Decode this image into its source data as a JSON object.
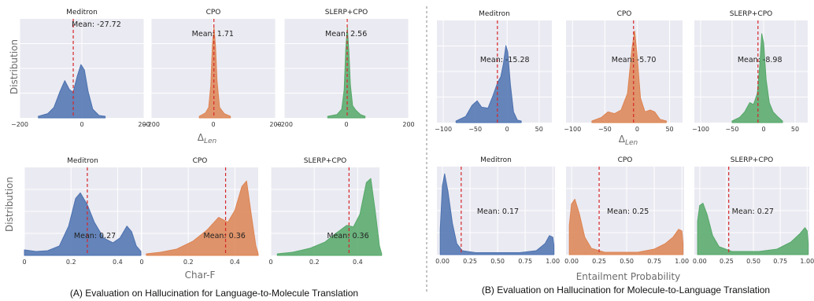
{
  "colors": {
    "Meditron": "#4c72b0",
    "CPO": "#dd8452",
    "SLERP+CPO": "#55a868",
    "panel_bg": "#eaeaf2",
    "mean_line": "#d62728"
  },
  "captions": {
    "left": "(A) Evaluation on Hallucination for Language-to-Molecule Translation",
    "right": "(B) Evaluation on Hallucination for Molecule-to-Language Translation"
  },
  "axis_labels": {
    "row_ylabel": "Distribution",
    "tl_xlabel": "Δ",
    "tl_xlabel_sub": "Len",
    "bl_xlabel": "Char-F",
    "tr_xlabel": "Δ",
    "tr_xlabel_sub": "Len",
    "br_xlabel": "Entailment Probability"
  },
  "chart_data": [
    {
      "id": "tl",
      "type": "area",
      "xlim": [
        -200,
        200
      ],
      "xticks": [
        -200,
        0,
        200
      ],
      "xtick_labels": [
        "−200",
        "0",
        "200"
      ],
      "grid": true,
      "panels": [
        {
          "title": "Meditron",
          "mean": -27.72,
          "mean_label": "Mean: -27.72",
          "color": "Meditron",
          "curve": [
            [
              -140,
              0
            ],
            [
              -110,
              0.03
            ],
            [
              -90,
              0.1
            ],
            [
              -70,
              0.28
            ],
            [
              -55,
              0.4
            ],
            [
              -40,
              0.3
            ],
            [
              -28,
              0.27
            ],
            [
              -15,
              0.45
            ],
            [
              -3,
              0.58
            ],
            [
              8,
              0.52
            ],
            [
              20,
              0.28
            ],
            [
              35,
              0.08
            ],
            [
              55,
              0.01
            ],
            [
              75,
              0
            ]
          ]
        },
        {
          "title": "CPO",
          "mean": 1.71,
          "mean_label": "Mean: 1.71",
          "color": "CPO",
          "curve": [
            [
              -45,
              0
            ],
            [
              -25,
              0.04
            ],
            [
              -15,
              0.1
            ],
            [
              -8,
              0.35
            ],
            [
              -3,
              0.8
            ],
            [
              2,
              1.0
            ],
            [
              7,
              0.78
            ],
            [
              12,
              0.4
            ],
            [
              20,
              0.1
            ],
            [
              35,
              0.03
            ],
            [
              55,
              0
            ]
          ]
        },
        {
          "title": "SLERP+CPO",
          "mean": 2.56,
          "mean_label": "Mean: 2.56",
          "color": "SLERP+CPO",
          "curve": [
            [
              -60,
              0
            ],
            [
              -30,
              0.02
            ],
            [
              -15,
              0.08
            ],
            [
              -7,
              0.3
            ],
            [
              -2,
              0.75
            ],
            [
              3,
              1.0
            ],
            [
              8,
              0.72
            ],
            [
              13,
              0.35
            ],
            [
              20,
              0.12
            ],
            [
              30,
              0.07
            ],
            [
              45,
              0.02
            ],
            [
              60,
              0
            ]
          ]
        }
      ]
    },
    {
      "id": "bl",
      "type": "area",
      "xlim": [
        0,
        0.5
      ],
      "xticks": [
        0,
        0.2,
        0.4
      ],
      "xtick_labels": [
        "0",
        "0.2",
        "0.4"
      ],
      "grid": true,
      "panels": [
        {
          "title": "Meditron",
          "mean": 0.27,
          "mean_label": "Mean: 0.27",
          "color": "Meditron",
          "curve": [
            [
              0,
              0.05
            ],
            [
              0.05,
              0.03
            ],
            [
              0.1,
              0.04
            ],
            [
              0.15,
              0.1
            ],
            [
              0.19,
              0.35
            ],
            [
              0.22,
              0.7
            ],
            [
              0.24,
              0.77
            ],
            [
              0.27,
              0.62
            ],
            [
              0.3,
              0.4
            ],
            [
              0.34,
              0.2
            ],
            [
              0.38,
              0.14
            ],
            [
              0.41,
              0.2
            ],
            [
              0.44,
              0.35
            ],
            [
              0.46,
              0.28
            ],
            [
              0.48,
              0.1
            ],
            [
              0.5,
              0.03
            ]
          ]
        },
        {
          "title": "CPO",
          "mean": 0.36,
          "mean_label": "Mean: 0.36",
          "color": "CPO",
          "curve": [
            [
              0.02,
              0
            ],
            [
              0.08,
              0.02
            ],
            [
              0.15,
              0.06
            ],
            [
              0.22,
              0.16
            ],
            [
              0.28,
              0.3
            ],
            [
              0.33,
              0.46
            ],
            [
              0.37,
              0.4
            ],
            [
              0.4,
              0.55
            ],
            [
              0.43,
              0.85
            ],
            [
              0.45,
              0.92
            ],
            [
              0.47,
              0.5
            ],
            [
              0.49,
              0.1
            ],
            [
              0.5,
              0
            ]
          ]
        },
        {
          "title": "SLERP+CPO",
          "mean": 0.36,
          "mean_label": "Mean: 0.36",
          "color": "SLERP+CPO",
          "curve": [
            [
              0.03,
              0
            ],
            [
              0.1,
              0.02
            ],
            [
              0.18,
              0.07
            ],
            [
              0.25,
              0.15
            ],
            [
              0.3,
              0.26
            ],
            [
              0.35,
              0.36
            ],
            [
              0.38,
              0.34
            ],
            [
              0.41,
              0.5
            ],
            [
              0.44,
              0.9
            ],
            [
              0.46,
              0.95
            ],
            [
              0.48,
              0.55
            ],
            [
              0.5,
              0.1
            ],
            [
              0.51,
              0
            ]
          ]
        }
      ]
    },
    {
      "id": "tr",
      "type": "area",
      "xlim": [
        -110,
        70
      ],
      "xticks": [
        -100,
        -50,
        0,
        50
      ],
      "xtick_labels": [
        "−100",
        "−50",
        "0",
        "50"
      ],
      "grid": true,
      "panels": [
        {
          "title": "Meditron",
          "mean": -15.28,
          "mean_label": "Mean: -15.28",
          "color": "Meditron",
          "curve": [
            [
              -80,
              0
            ],
            [
              -65,
              0.05
            ],
            [
              -55,
              0.17
            ],
            [
              -47,
              0.22
            ],
            [
              -40,
              0.15
            ],
            [
              -30,
              0.14
            ],
            [
              -22,
              0.28
            ],
            [
              -15,
              0.42
            ],
            [
              -10,
              0.48
            ],
            [
              -6,
              0.62
            ],
            [
              -2,
              0.82
            ],
            [
              1,
              0.75
            ],
            [
              5,
              0.4
            ],
            [
              10,
              0.1
            ],
            [
              16,
              0.01
            ],
            [
              22,
              0
            ]
          ]
        },
        {
          "title": "CPO",
          "mean": -5.7,
          "mean_label": "Mean: -5.70",
          "color": "CPO",
          "curve": [
            [
              -70,
              0
            ],
            [
              -55,
              0.04
            ],
            [
              -45,
              0.1
            ],
            [
              -35,
              0.08
            ],
            [
              -25,
              0.12
            ],
            [
              -15,
              0.3
            ],
            [
              -8,
              0.8
            ],
            [
              -4,
              0.98
            ],
            [
              0,
              0.7
            ],
            [
              5,
              0.25
            ],
            [
              12,
              0.1
            ],
            [
              20,
              0.12
            ],
            [
              27,
              0.1
            ],
            [
              35,
              0.02
            ],
            [
              45,
              0
            ]
          ]
        },
        {
          "title": "SLERP+CPO",
          "mean": -8.98,
          "mean_label": "Mean: -8.98",
          "color": "SLERP+CPO",
          "curve": [
            [
              -50,
              0
            ],
            [
              -38,
              0.04
            ],
            [
              -30,
              0.1
            ],
            [
              -22,
              0.2
            ],
            [
              -16,
              0.18
            ],
            [
              -10,
              0.3
            ],
            [
              -6,
              0.62
            ],
            [
              -3,
              0.95
            ],
            [
              0,
              0.85
            ],
            [
              4,
              0.45
            ],
            [
              9,
              0.2
            ],
            [
              15,
              0.1
            ],
            [
              22,
              0.05
            ],
            [
              30,
              0
            ]
          ]
        }
      ]
    },
    {
      "id": "br",
      "type": "area",
      "xlim": [
        -0.05,
        1.02
      ],
      "xticks": [
        0,
        0.25,
        0.5,
        0.75,
        1.0
      ],
      "xtick_labels": [
        "0.00",
        "0.25",
        "0.50",
        "0.75",
        "1.00"
      ],
      "grid": true,
      "panels": [
        {
          "title": "Meditron",
          "mean": 0.17,
          "mean_label": "Mean: 0.17",
          "color": "Meditron",
          "curve": [
            [
              -0.02,
              0.3
            ],
            [
              0,
              0.85
            ],
            [
              0.02,
              1.0
            ],
            [
              0.05,
              0.78
            ],
            [
              0.09,
              0.38
            ],
            [
              0.13,
              0.12
            ],
            [
              0.18,
              0.03
            ],
            [
              0.3,
              0.005
            ],
            [
              0.7,
              0.005
            ],
            [
              0.85,
              0.03
            ],
            [
              0.93,
              0.12
            ],
            [
              0.97,
              0.22
            ],
            [
              1.0,
              0.2
            ],
            [
              1.01,
              0.1
            ]
          ]
        },
        {
          "title": "CPO",
          "mean": 0.25,
          "mean_label": "Mean: 0.25",
          "color": "CPO",
          "curve": [
            [
              -0.02,
              0.35
            ],
            [
              0,
              0.62
            ],
            [
              0.03,
              0.68
            ],
            [
              0.07,
              0.5
            ],
            [
              0.12,
              0.2
            ],
            [
              0.18,
              0.06
            ],
            [
              0.3,
              0.01
            ],
            [
              0.6,
              0.01
            ],
            [
              0.75,
              0.05
            ],
            [
              0.85,
              0.12
            ],
            [
              0.92,
              0.2
            ],
            [
              0.97,
              0.3
            ],
            [
              1.0,
              0.28
            ],
            [
              1.01,
              0.12
            ]
          ]
        },
        {
          "title": "SLERP+CPO",
          "mean": 0.27,
          "mean_label": "Mean: 0.27",
          "color": "SLERP+CPO",
          "curve": [
            [
              -0.02,
              0.4
            ],
            [
              0,
              0.6
            ],
            [
              0.03,
              0.63
            ],
            [
              0.07,
              0.48
            ],
            [
              0.12,
              0.22
            ],
            [
              0.18,
              0.08
            ],
            [
              0.3,
              0.02
            ],
            [
              0.55,
              0.02
            ],
            [
              0.72,
              0.05
            ],
            [
              0.85,
              0.14
            ],
            [
              0.93,
              0.24
            ],
            [
              0.98,
              0.32
            ],
            [
              1.0,
              0.28
            ],
            [
              1.01,
              0.12
            ]
          ]
        }
      ]
    }
  ]
}
